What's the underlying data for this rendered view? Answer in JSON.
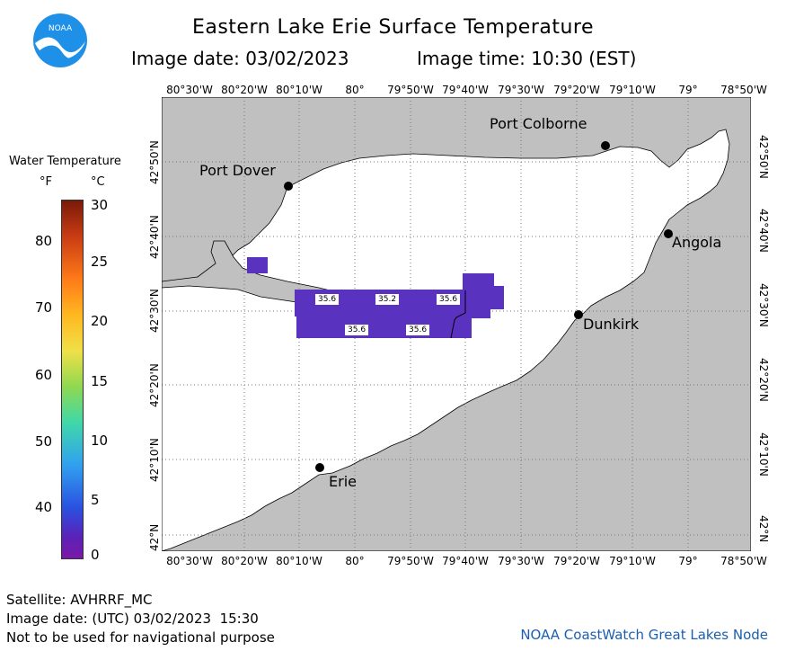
{
  "header": {
    "title": "Eastern Lake Erie Surface Temperature",
    "image_date": "Image date: 03/02/2023",
    "image_time": "Image time: 10:30 (EST)"
  },
  "logo": {
    "text": "NOAA"
  },
  "axes": {
    "lon_labels": [
      "80°30'W",
      "80°20'W",
      "80°10'W",
      "80°",
      "79°50'W",
      "79°40'W",
      "79°30'W",
      "79°20'W",
      "79°10'W",
      "79°",
      "78°50'W"
    ],
    "lat_labels": [
      "42°50'N",
      "42°40'N",
      "42°30'N",
      "42°20'N",
      "42°10'N",
      "42°N"
    ]
  },
  "cities": [
    {
      "name": "Port Colborne"
    },
    {
      "name": "Port Dover"
    },
    {
      "name": "Angola"
    },
    {
      "name": "Dunkirk"
    },
    {
      "name": "Erie"
    }
  ],
  "temperature_labels": [
    "35.6",
    "35.2",
    "35.6",
    "35.6",
    "35.6"
  ],
  "legend": {
    "title": "Water Temperature",
    "unit_f": "°F",
    "unit_c": "°C",
    "f_ticks": [
      "80",
      "70",
      "60",
      "50",
      "40"
    ],
    "c_ticks": [
      "30",
      "25",
      "20",
      "15",
      "10",
      "5",
      "0"
    ]
  },
  "footer": {
    "satellite": "Satellite: AVHRRF_MC",
    "utc_date": "Image date: (UTC) 03/02/2023  15:30",
    "disclaimer": "Not to be used for navigational purpose",
    "credit": "NOAA CoastWatch Great Lakes Node"
  },
  "colors": {
    "land": "#c0c0c0",
    "water": "#ffffff",
    "sst": "#5a32c0",
    "sst_edge": "#6a40d0",
    "credit": "#1a5fb0"
  }
}
